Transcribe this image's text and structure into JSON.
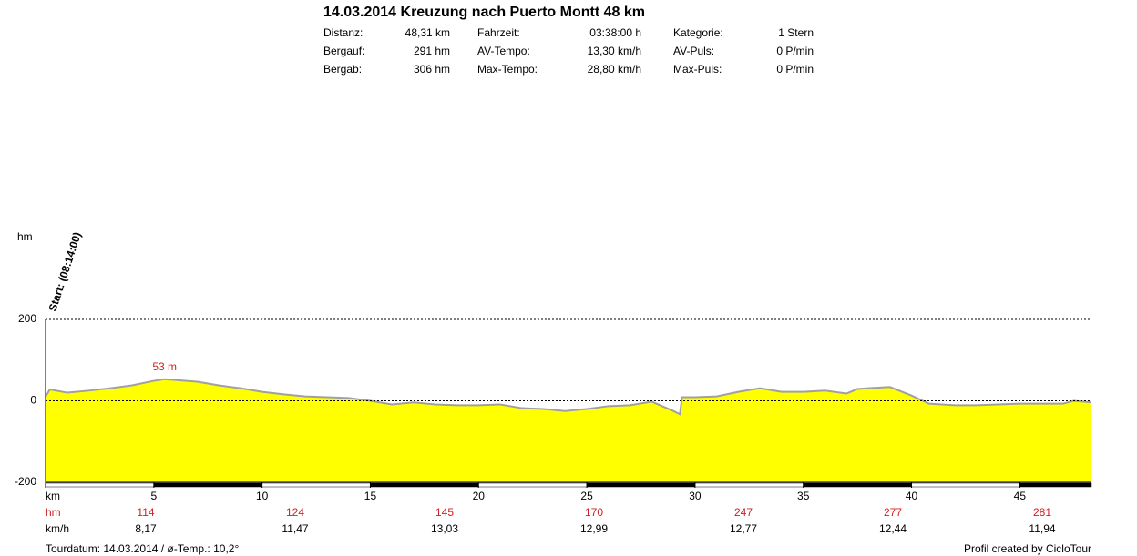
{
  "chart_data": {
    "type": "area",
    "title": "14.03.2014 Kreuzung nach Puerto Montt 48 km",
    "stats": [
      [
        [
          "Distanz:",
          "48,31 km"
        ],
        [
          "Fahrzeit:",
          "03:38:00 h"
        ],
        [
          "Kategorie:",
          "1 Stern"
        ]
      ],
      [
        [
          "Bergauf:",
          "291 hm"
        ],
        [
          "AV-Tempo:",
          "13,30 km/h"
        ],
        [
          "AV-Puls:",
          "0 P/min"
        ]
      ],
      [
        [
          "Bergab:",
          "306 hm"
        ],
        [
          "Max-Tempo:",
          "28,80 km/h"
        ],
        [
          "Max-Puls:",
          "0 P/min"
        ]
      ]
    ],
    "y_label": "hm",
    "x_label": "km",
    "start_label": "Start: (08:14:00)",
    "max_label": "53 m",
    "x": [
      0,
      0.2,
      1,
      2,
      3,
      4,
      5,
      5.5,
      7,
      8,
      9,
      10,
      11,
      12,
      13,
      14,
      15,
      16,
      17,
      18,
      19,
      20,
      21,
      22,
      23,
      24,
      25,
      26,
      27,
      28,
      29,
      29.3,
      29.4,
      30,
      31,
      32,
      33,
      34,
      35,
      36,
      37,
      37.5,
      38,
      39,
      40,
      40.8,
      42,
      43,
      44,
      45,
      46,
      47,
      47.5,
      48.31
    ],
    "values": [
      10,
      28,
      20,
      25,
      31,
      38,
      49,
      53,
      47,
      38,
      31,
      22,
      16,
      11,
      9,
      7,
      0,
      -9,
      -4,
      -9,
      -11,
      -11,
      -9,
      -18,
      -20,
      -25,
      -20,
      -13,
      -11,
      -2,
      -25,
      -33,
      9,
      9,
      11,
      22,
      31,
      22,
      22,
      25,
      18,
      29,
      31,
      34,
      13,
      -7,
      -11,
      -11,
      -9,
      -7,
      -7,
      -7,
      0,
      -4
    ],
    "color": "#ffff00",
    "line_color": "#a0a0a0",
    "xlim": [
      0,
      48.31
    ],
    "xticks": [
      5,
      10,
      15,
      20,
      25,
      30,
      35,
      40,
      45
    ],
    "ylim": [
      -200,
      200
    ],
    "yticks": [
      -200,
      0,
      200
    ],
    "grid": true,
    "segments": {
      "hm_label": "hm",
      "hm": [
        114,
        124,
        145,
        170,
        247,
        277,
        281
      ],
      "speed_label": "km/h",
      "speed": [
        "8,17",
        "11,47",
        "13,03",
        "12,99",
        "12,77",
        "12,44",
        "11,94"
      ]
    },
    "footer_left": "Tourdatum: 14.03.2014  /  ø-Temp.: 10,2°",
    "footer_right": "Profil created by CicloTour"
  }
}
